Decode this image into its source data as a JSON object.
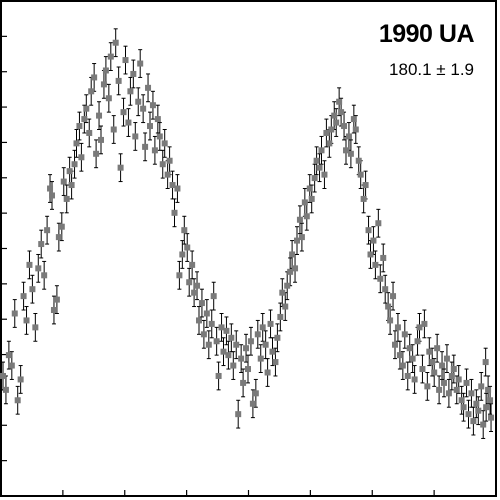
{
  "chart_data": {
    "type": "scatter",
    "title": "1990 UA",
    "subtitle": "180.1 ± 1.9",
    "xlabel": "",
    "ylabel": "",
    "xlim": [
      0,
      1
    ],
    "ylim": [
      0,
      14
    ],
    "x_tick_count": 9,
    "y_tick_count": 15,
    "grid": false,
    "error_bars": true,
    "marker": "square",
    "colors": {
      "marker": "#7a7a7a",
      "error_bar": "#000000",
      "axis": "#000000"
    },
    "series": [
      {
        "points": [
          [
            0.0,
            3.4,
            0.4
          ],
          [
            0.006,
            3.0,
            0.4
          ],
          [
            0.012,
            4.0,
            0.4
          ],
          [
            0.018,
            3.7,
            0.4
          ],
          [
            0.024,
            5.2,
            0.4
          ],
          [
            0.03,
            2.7,
            0.4
          ],
          [
            0.036,
            3.3,
            0.4
          ],
          [
            0.042,
            5.7,
            0.4
          ],
          [
            0.048,
            5.0,
            0.4
          ],
          [
            0.054,
            6.6,
            0.4
          ],
          [
            0.06,
            5.9,
            0.4
          ],
          [
            0.066,
            4.8,
            0.4
          ],
          [
            0.072,
            6.5,
            0.4
          ],
          [
            0.078,
            7.2,
            0.4
          ],
          [
            0.084,
            6.3,
            0.4
          ],
          [
            0.09,
            7.6,
            0.4
          ],
          [
            0.096,
            8.8,
            0.4
          ],
          [
            0.1,
            8.6,
            0.4
          ],
          [
            0.104,
            5.3,
            0.4
          ],
          [
            0.11,
            5.6,
            0.4
          ],
          [
            0.114,
            7.4,
            0.4
          ],
          [
            0.12,
            7.7,
            0.4
          ],
          [
            0.124,
            9.0,
            0.4
          ],
          [
            0.13,
            8.5,
            0.4
          ],
          [
            0.136,
            9.3,
            0.4
          ],
          [
            0.14,
            8.9,
            0.4
          ],
          [
            0.146,
            9.5,
            0.4
          ],
          [
            0.15,
            10.1,
            0.4
          ],
          [
            0.156,
            10.6,
            0.4
          ],
          [
            0.16,
            9.7,
            0.4
          ],
          [
            0.166,
            10.8,
            0.4
          ],
          [
            0.17,
            11.1,
            0.4
          ],
          [
            0.176,
            10.4,
            0.4
          ],
          [
            0.18,
            11.6,
            0.4
          ],
          [
            0.186,
            12.0,
            0.4
          ],
          [
            0.19,
            9.8,
            0.4
          ],
          [
            0.196,
            10.9,
            0.4
          ],
          [
            0.2,
            10.2,
            0.4
          ],
          [
            0.206,
            11.8,
            0.4
          ],
          [
            0.21,
            12.2,
            0.4
          ],
          [
            0.216,
            11.4,
            0.4
          ],
          [
            0.22,
            12.6,
            0.4
          ],
          [
            0.226,
            10.5,
            0.4
          ],
          [
            0.23,
            13.0,
            0.4
          ],
          [
            0.236,
            11.9,
            0.4
          ],
          [
            0.24,
            9.4,
            0.4
          ],
          [
            0.246,
            11.0,
            0.4
          ],
          [
            0.25,
            12.5,
            0.4
          ],
          [
            0.256,
            10.7,
            0.4
          ],
          [
            0.26,
            11.6,
            0.4
          ],
          [
            0.266,
            12.1,
            0.4
          ],
          [
            0.27,
            10.3,
            0.4
          ],
          [
            0.276,
            11.3,
            0.4
          ],
          [
            0.28,
            12.4,
            0.4
          ],
          [
            0.286,
            11.1,
            0.4
          ],
          [
            0.29,
            10.0,
            0.4
          ],
          [
            0.296,
            11.7,
            0.4
          ],
          [
            0.3,
            10.6,
            0.4
          ],
          [
            0.306,
            11.2,
            0.4
          ],
          [
            0.31,
            9.9,
            0.4
          ],
          [
            0.316,
            10.8,
            0.4
          ],
          [
            0.32,
            10.3,
            0.4
          ],
          [
            0.326,
            9.5,
            0.4
          ],
          [
            0.33,
            10.1,
            0.4
          ],
          [
            0.336,
            9.2,
            0.4
          ],
          [
            0.34,
            9.6,
            0.4
          ],
          [
            0.346,
            8.9,
            0.4
          ],
          [
            0.35,
            8.1,
            0.4
          ],
          [
            0.356,
            8.8,
            0.4
          ],
          [
            0.36,
            6.3,
            0.4
          ],
          [
            0.366,
            6.9,
            0.4
          ],
          [
            0.37,
            7.6,
            0.4
          ],
          [
            0.376,
            7.1,
            0.4
          ],
          [
            0.38,
            6.1,
            0.4
          ],
          [
            0.386,
            6.6,
            0.4
          ],
          [
            0.39,
            5.8,
            0.4
          ],
          [
            0.396,
            6.0,
            0.4
          ],
          [
            0.4,
            5.0,
            0.4
          ],
          [
            0.406,
            5.5,
            0.4
          ],
          [
            0.41,
            4.6,
            0.4
          ],
          [
            0.416,
            5.2,
            0.4
          ],
          [
            0.42,
            4.3,
            0.4
          ],
          [
            0.426,
            4.9,
            0.4
          ],
          [
            0.43,
            5.7,
            0.4
          ],
          [
            0.436,
            4.4,
            0.4
          ],
          [
            0.44,
            3.4,
            0.4
          ],
          [
            0.446,
            4.8,
            0.4
          ],
          [
            0.45,
            4.1,
            0.4
          ],
          [
            0.456,
            4.7,
            0.4
          ],
          [
            0.46,
            4.0,
            0.4
          ],
          [
            0.466,
            4.5,
            0.4
          ],
          [
            0.47,
            3.7,
            0.4
          ],
          [
            0.476,
            4.3,
            0.4
          ],
          [
            0.48,
            2.3,
            0.4
          ],
          [
            0.486,
            3.9,
            0.4
          ],
          [
            0.49,
            3.2,
            0.4
          ],
          [
            0.496,
            4.2,
            0.4
          ],
          [
            0.5,
            3.6,
            0.4
          ],
          [
            0.506,
            4.4,
            0.4
          ],
          [
            0.51,
            2.6,
            0.4
          ],
          [
            0.516,
            2.9,
            0.4
          ],
          [
            0.52,
            4.6,
            0.4
          ],
          [
            0.526,
            3.9,
            0.4
          ],
          [
            0.53,
            4.8,
            0.4
          ],
          [
            0.536,
            4.3,
            0.4
          ],
          [
            0.54,
            3.5,
            0.4
          ],
          [
            0.546,
            4.9,
            0.4
          ],
          [
            0.55,
            4.1,
            0.4
          ],
          [
            0.556,
            3.8,
            0.4
          ],
          [
            0.56,
            4.5,
            0.4
          ],
          [
            0.566,
            5.1,
            0.4
          ],
          [
            0.57,
            5.8,
            0.4
          ],
          [
            0.576,
            5.4,
            0.4
          ],
          [
            0.58,
            6.0,
            0.4
          ],
          [
            0.586,
            6.4,
            0.4
          ],
          [
            0.59,
            6.9,
            0.4
          ],
          [
            0.596,
            6.5,
            0.4
          ],
          [
            0.6,
            7.3,
            0.4
          ],
          [
            0.606,
            7.9,
            0.4
          ],
          [
            0.61,
            7.4,
            0.4
          ],
          [
            0.616,
            8.4,
            0.4
          ],
          [
            0.62,
            8.0,
            0.4
          ],
          [
            0.626,
            8.8,
            0.4
          ],
          [
            0.63,
            8.5,
            0.4
          ],
          [
            0.636,
            9.1,
            0.4
          ],
          [
            0.64,
            9.6,
            0.4
          ],
          [
            0.646,
            9.4,
            0.4
          ],
          [
            0.65,
            9.9,
            0.4
          ],
          [
            0.656,
            9.2,
            0.4
          ],
          [
            0.66,
            10.4,
            0.4
          ],
          [
            0.666,
            10.1,
            0.4
          ],
          [
            0.67,
            10.5,
            0.4
          ],
          [
            0.676,
            10.9,
            0.4
          ],
          [
            0.68,
            10.7,
            0.4
          ],
          [
            0.686,
            11.3,
            0.4
          ],
          [
            0.69,
            11.0,
            0.4
          ],
          [
            0.696,
            10.6,
            0.4
          ],
          [
            0.7,
            9.9,
            0.4
          ],
          [
            0.706,
            10.3,
            0.4
          ],
          [
            0.71,
            9.8,
            0.4
          ],
          [
            0.716,
            10.8,
            0.4
          ],
          [
            0.72,
            10.5,
            0.4
          ],
          [
            0.726,
            9.6,
            0.4
          ],
          [
            0.73,
            9.2,
            0.4
          ],
          [
            0.736,
            8.5,
            0.4
          ],
          [
            0.74,
            8.9,
            0.4
          ],
          [
            0.746,
            7.6,
            0.4
          ],
          [
            0.75,
            6.9,
            0.4
          ],
          [
            0.756,
            7.3,
            0.4
          ],
          [
            0.76,
            6.6,
            0.4
          ],
          [
            0.766,
            7.8,
            0.4
          ],
          [
            0.77,
            6.2,
            0.4
          ],
          [
            0.776,
            6.8,
            0.4
          ],
          [
            0.78,
            5.9,
            0.4
          ],
          [
            0.786,
            5.4,
            0.4
          ],
          [
            0.79,
            5.0,
            0.4
          ],
          [
            0.796,
            5.7,
            0.4
          ],
          [
            0.8,
            4.3,
            0.4
          ],
          [
            0.806,
            4.8,
            0.4
          ],
          [
            0.81,
            4.0,
            0.4
          ],
          [
            0.816,
            3.7,
            0.4
          ],
          [
            0.82,
            4.6,
            0.4
          ],
          [
            0.826,
            3.4,
            0.4
          ],
          [
            0.83,
            4.2,
            0.4
          ],
          [
            0.836,
            3.9,
            0.4
          ],
          [
            0.84,
            3.3,
            0.4
          ],
          [
            0.846,
            4.4,
            0.4
          ],
          [
            0.85,
            4.8,
            0.4
          ],
          [
            0.856,
            3.6,
            0.4
          ],
          [
            0.86,
            4.9,
            0.4
          ],
          [
            0.866,
            3.1,
            0.4
          ],
          [
            0.87,
            4.1,
            0.4
          ],
          [
            0.876,
            3.8,
            0.4
          ],
          [
            0.88,
            3.5,
            0.4
          ],
          [
            0.886,
            4.2,
            0.4
          ],
          [
            0.89,
            3.0,
            0.4
          ],
          [
            0.896,
            3.7,
            0.4
          ],
          [
            0.9,
            3.2,
            0.4
          ],
          [
            0.906,
            3.9,
            0.4
          ],
          [
            0.91,
            2.9,
            0.4
          ],
          [
            0.916,
            3.4,
            0.4
          ],
          [
            0.92,
            3.6,
            0.4
          ],
          [
            0.926,
            3.0,
            0.4
          ],
          [
            0.93,
            3.3,
            0.4
          ],
          [
            0.936,
            2.7,
            0.4
          ],
          [
            0.94,
            2.5,
            0.4
          ],
          [
            0.946,
            3.2,
            0.4
          ],
          [
            0.95,
            2.3,
            0.4
          ],
          [
            0.956,
            2.9,
            0.4
          ],
          [
            0.96,
            2.1,
            0.4
          ],
          [
            0.966,
            2.6,
            0.4
          ],
          [
            0.97,
            2.4,
            0.4
          ],
          [
            0.976,
            3.1,
            0.4
          ],
          [
            0.98,
            2.0,
            0.4
          ],
          [
            0.986,
            2.5,
            0.4
          ],
          [
            0.99,
            3.0,
            0.4
          ],
          [
            0.996,
            2.2,
            0.4
          ],
          [
            0.985,
            3.8,
            0.4
          ],
          [
            0.994,
            2.7,
            0.4
          ]
        ]
      }
    ]
  }
}
